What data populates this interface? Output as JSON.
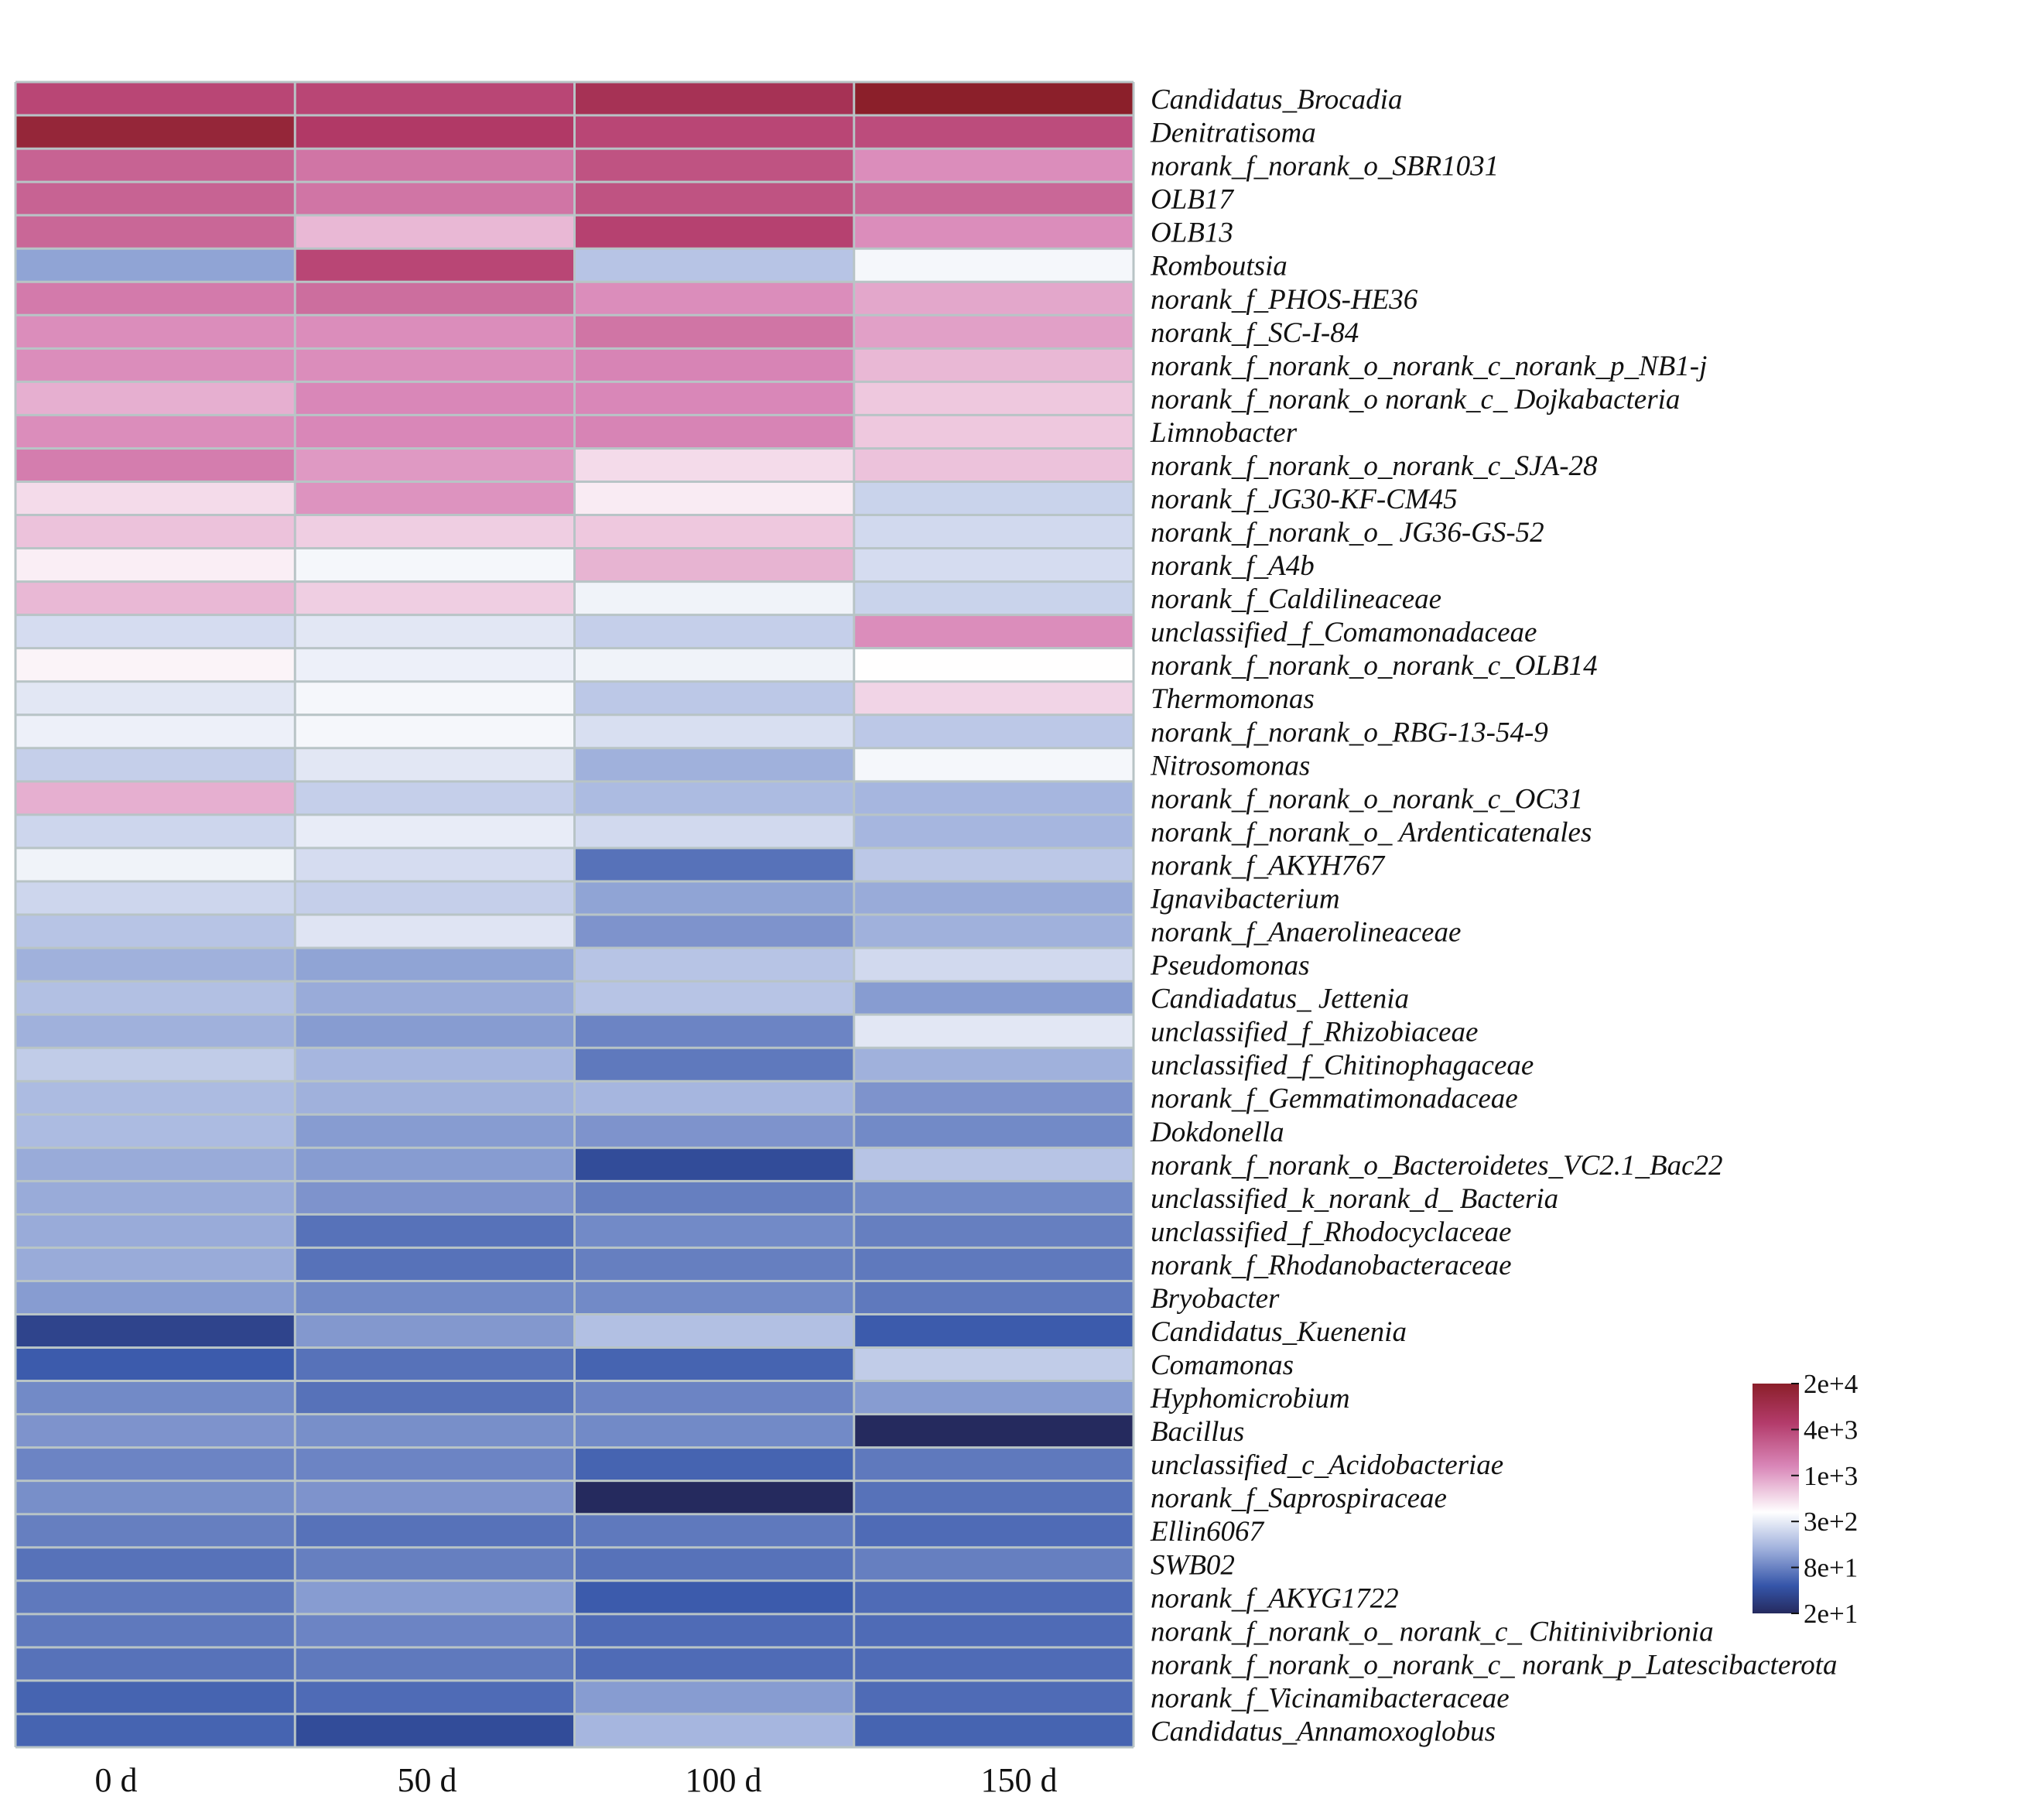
{
  "chart_data": {
    "type": "heatmap",
    "title": "",
    "xlabel": "",
    "ylabel": "",
    "columns": [
      "0 d",
      "50 d",
      "100 d",
      "150 d"
    ],
    "rows": [
      "Candidatus_Brocadia",
      "Denitratisoma",
      "norank_f_norank_o_SBR1031",
      "OLB17",
      "OLB13",
      "Romboutsia",
      "norank_f_PHOS-HE36",
      "norank_f_SC-I-84",
      "norank_f_norank_o_norank_c_norank_p_NB1-j",
      "norank_f_norank_o norank_c_ Dojkabacteria",
      "Limnobacter",
      "norank_f_norank_o_norank_c_SJA-28",
      "norank_f_JG30-KF-CM45",
      "norank_f_norank_o_ JG36-GS-52",
      "norank_f_A4b",
      "norank_f_Caldilineaceae",
      "unclassified_f_Comamonadaceae",
      "norank_f_norank_o_norank_c_OLB14",
      "Thermomonas",
      "norank_f_norank_o_RBG-13-54-9",
      "Nitrosomonas",
      "norank_f_norank_o_norank_c_OC31",
      "norank_f_norank_o_ Ardenticatenales",
      "norank_f_AKYH767",
      "Ignavibacterium",
      "norank_f_Anaerolineaceae",
      "Pseudomonas",
      "Candiadatus_ Jettenia",
      "unclassified_f_Rhizobiaceae",
      "unclassified_f_Chitinophagaceae",
      "norank_f_Gemmatimonadaceae",
      "Dokdonella",
      "norank_f_norank_o_Bacteroidetes_VC2.1_Bac22",
      "unclassified_k_norank_d_ Bacteria",
      "unclassified_f_Rhodocyclaceae",
      "norank_f_Rhodanobacteraceae",
      "Bryobacter",
      "Candidatus_Kuenenia",
      "Comamonas",
      "Hyphomicrobium",
      "Bacillus",
      "unclassified_c_Acidobacteriae",
      "norank_f_Saprospiraceae",
      "Ellin6067",
      "SWB02",
      "norank_f_AKYG1722",
      "norank_f_norank_o_ norank_c_ Chitinivibrionia",
      "norank_f_norank_o_norank_c_ norank_p_Latescibacterota",
      "norank_f_Vicinamibacteraceae",
      "Candidatus_Annamoxoglobus"
    ],
    "values": [
      [
        5000,
        5000,
        9000,
        20000
      ],
      [
        15000,
        6500,
        5000,
        4500
      ],
      [
        3000,
        2200,
        4000,
        1500
      ],
      [
        3000,
        2200,
        4000,
        2800
      ],
      [
        2800,
        900,
        5500,
        1500
      ],
      [
        110,
        5000,
        170,
        350
      ],
      [
        2000,
        2500,
        1500,
        1100
      ],
      [
        1500,
        1500,
        2200,
        1200
      ],
      [
        1500,
        1500,
        1700,
        900
      ],
      [
        1000,
        1600,
        1600,
        750
      ],
      [
        1500,
        1600,
        1700,
        750
      ],
      [
        1900,
        1300,
        600,
        800
      ],
      [
        600,
        1400,
        500,
        210
      ],
      [
        800,
        700,
        750,
        230
      ],
      [
        480,
        350,
        950,
        240
      ],
      [
        900,
        700,
        330,
        210
      ],
      [
        240,
        280,
        200,
        1500
      ],
      [
        450,
        320,
        330,
        400
      ],
      [
        280,
        350,
        180,
        650
      ],
      [
        320,
        350,
        250,
        180
      ],
      [
        200,
        280,
        130,
        350
      ],
      [
        1000,
        200,
        150,
        140
      ],
      [
        220,
        300,
        230,
        140
      ],
      [
        330,
        240,
        60,
        180
      ],
      [
        220,
        200,
        110,
        120
      ],
      [
        170,
        270,
        90,
        130
      ],
      [
        130,
        110,
        170,
        230
      ],
      [
        160,
        120,
        170,
        100
      ],
      [
        130,
        100,
        75,
        280
      ],
      [
        190,
        140,
        65,
        130
      ],
      [
        150,
        130,
        140,
        90
      ],
      [
        150,
        100,
        90,
        80
      ],
      [
        120,
        100,
        35,
        170
      ],
      [
        120,
        90,
        70,
        80
      ],
      [
        120,
        60,
        80,
        70
      ],
      [
        120,
        60,
        70,
        65
      ],
      [
        100,
        80,
        80,
        65
      ],
      [
        30,
        95,
        160,
        45
      ],
      [
        45,
        60,
        50,
        190
      ],
      [
        80,
        60,
        75,
        100
      ],
      [
        90,
        85,
        80,
        18
      ],
      [
        75,
        75,
        50,
        65
      ],
      [
        85,
        90,
        18,
        60
      ],
      [
        70,
        60,
        65,
        55
      ],
      [
        60,
        70,
        60,
        70
      ],
      [
        65,
        100,
        45,
        55
      ],
      [
        65,
        75,
        55,
        55
      ],
      [
        60,
        65,
        55,
        55
      ],
      [
        50,
        55,
        100,
        55
      ],
      [
        50,
        35,
        140,
        50
      ]
    ],
    "colorbar": {
      "ticks": [
        "2e+4",
        "4e+3",
        "1e+3",
        "3e+2",
        "8e+1",
        "2e+1"
      ],
      "stops": [
        "#8b1f2a",
        "#b33b6a",
        "#d987b8",
        "#ffffff",
        "#9fb0dc",
        "#3555a9",
        "#252a5e"
      ]
    }
  }
}
